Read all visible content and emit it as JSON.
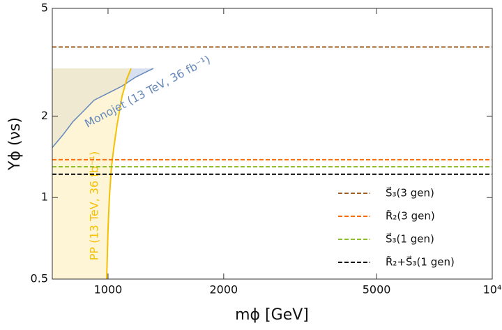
{
  "chart_data": {
    "type": "line",
    "xlabel": "mϕ [GeV]",
    "ylabel": "Yϕ (νs)",
    "log_x": true,
    "log_y": true,
    "xlim": [
      716,
      10000
    ],
    "ylim": [
      0.5,
      5
    ],
    "xticks": [
      1000,
      2000,
      5000,
      {
        "value": 10000,
        "label": "10⁴"
      }
    ],
    "yticks": [
      0.5,
      1,
      2,
      5
    ],
    "legend": "lower right",
    "series": [
      {
        "name": "S⃗₃(3 gen)",
        "color": "#a0612a",
        "x": [
          716,
          10000
        ],
        "values": [
          3.6,
          3.6
        ]
      },
      {
        "name": "R̃₂(3 gen)",
        "color": "#ff6a00",
        "x": [
          716,
          10000
        ],
        "values": [
          1.38,
          1.38
        ]
      },
      {
        "name": "S⃗₃(1 gen)",
        "color": "#8fbf2a",
        "x": [
          716,
          10000
        ],
        "values": [
          1.3,
          1.3
        ]
      },
      {
        "name": "R̃₂+S⃗₃(1 gen)",
        "color": "#000000",
        "x": [
          716,
          10000
        ],
        "values": [
          1.22,
          1.22
        ]
      }
    ],
    "curves": [
      {
        "label": "Monojet (13 TeV, 36 fb⁻¹)",
        "color": "#6688bb",
        "fill": "#c9d5ec",
        "x": [
          716,
          762,
          811,
          864,
          920,
          1000,
          1087,
          1182,
          1312
        ],
        "values": [
          1.53,
          1.7,
          1.91,
          2.09,
          2.29,
          2.43,
          2.58,
          2.79,
          3.0
        ]
      },
      {
        "label": "PP (13 TeV, 36 fb⁻¹)",
        "color": "#f5c000",
        "fill": "#fdeebb",
        "x": [
          992,
          1000,
          1008,
          1021,
          1034,
          1056,
          1087,
          1119,
          1148
        ],
        "values": [
          0.5,
          0.76,
          1.0,
          1.3,
          1.51,
          1.86,
          2.36,
          2.74,
          3.0
        ]
      }
    ]
  }
}
